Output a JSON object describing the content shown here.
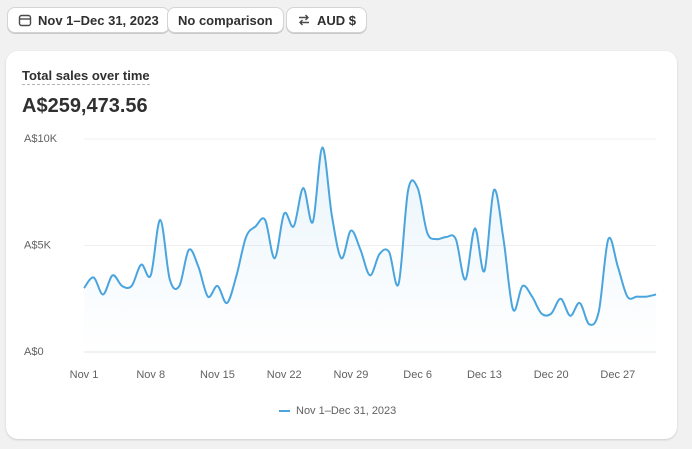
{
  "toolbar": {
    "date_range": "Nov 1–Dec 31, 2023",
    "comparison": "No comparison",
    "currency": "AUD $"
  },
  "card": {
    "title": "Total sales over time",
    "total": "A$259,473.56"
  },
  "chart_data": {
    "type": "line",
    "categories": [
      "Nov 1",
      null,
      null,
      null,
      null,
      null,
      null,
      "Nov 8",
      null,
      null,
      null,
      null,
      null,
      null,
      "Nov 15",
      null,
      null,
      null,
      null,
      null,
      null,
      "Nov 22",
      null,
      null,
      null,
      null,
      null,
      null,
      "Nov 29",
      null,
      null,
      null,
      null,
      null,
      null,
      "Dec 6",
      null,
      null,
      null,
      null,
      null,
      null,
      "Dec 13",
      null,
      null,
      null,
      null,
      null,
      null,
      "Dec 20",
      null,
      null,
      null,
      null,
      null,
      null,
      "Dec 27",
      null,
      null,
      null,
      null
    ],
    "series": [
      {
        "name": "Nov 1–Dec 31, 2023",
        "color": "#4aa5de",
        "values": [
          3000,
          3500,
          2700,
          3600,
          3100,
          3100,
          4100,
          3600,
          6200,
          3400,
          3100,
          4800,
          4000,
          2600,
          3100,
          2300,
          3600,
          5400,
          5900,
          6200,
          4400,
          6500,
          5900,
          7700,
          6100,
          9600,
          6400,
          4400,
          5700,
          4800,
          3600,
          4600,
          4700,
          3200,
          7600,
          7700,
          5600,
          5300,
          5400,
          5300,
          3400,
          5800,
          3800,
          7600,
          5300,
          2000,
          3100,
          2600,
          1800,
          1800,
          2500,
          1700,
          2300,
          1300,
          1900,
          5300,
          4000,
          2600,
          2600,
          2600,
          2700
        ]
      }
    ],
    "ylim": [
      0,
      10000
    ],
    "yticks": [
      {
        "value": 0,
        "label": "A$0"
      },
      {
        "value": 5000,
        "label": "A$5K"
      },
      {
        "value": 10000,
        "label": "A$10K"
      }
    ],
    "grid": true
  }
}
